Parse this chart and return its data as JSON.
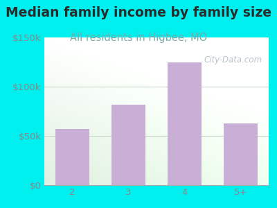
{
  "title": "Median family income by family size",
  "subtitle": "All residents in Higbee, MO",
  "categories": [
    "2",
    "3",
    "4",
    "5+"
  ],
  "values": [
    57000,
    82000,
    125000,
    63000
  ],
  "bar_color": "#c9aed6",
  "title_color": "#2b2b2b",
  "subtitle_color": "#7aada8",
  "outer_bg_color": "#00efef",
  "ymax": 150000,
  "yticks": [
    0,
    50000,
    100000,
    150000
  ],
  "ytick_labels": [
    "$0",
    "$50k",
    "$100k",
    "$150k"
  ],
  "watermark": "City-Data.com",
  "title_fontsize": 13.5,
  "subtitle_fontsize": 10.5,
  "tick_fontsize": 9.5,
  "watermark_color": "#aab8c0",
  "gridline_color": "#c8d8c8",
  "tick_color": "#888888"
}
